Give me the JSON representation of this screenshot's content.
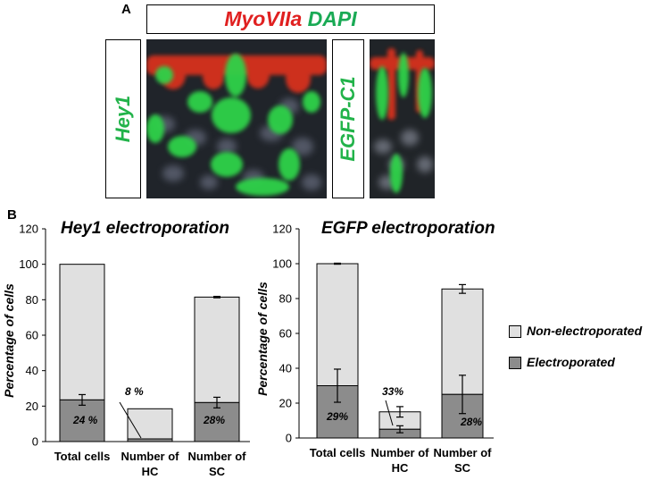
{
  "panel_a": {
    "letter": "A",
    "title_red": "MyoVIIa",
    "title_green": "DAPI",
    "left_label": "Hey1",
    "right_label": "EGFP-C1"
  },
  "panel_b": {
    "letter": "B"
  },
  "legend": {
    "non_electroporated": "Non-electroporated",
    "electroporated": "Electroporated"
  },
  "colors": {
    "non_electroporated": "#e0e0e0",
    "electroporated": "#8c8c8c",
    "red_stain": "#e02020",
    "green_stain": "#22b34a"
  },
  "chart_data": [
    {
      "type": "bar",
      "stacked": true,
      "title": "Hey1 electroporation",
      "ylabel": "Percentage of cells",
      "ylim": [
        0,
        120
      ],
      "yticks": [
        0,
        20,
        40,
        60,
        80,
        100,
        120
      ],
      "categories": [
        "Total cells",
        "Number of HC",
        "Number of SC"
      ],
      "series": [
        {
          "name": "Electroporated",
          "values": [
            23.5,
            1.5,
            22
          ],
          "errors": [
            3,
            0,
            3
          ]
        },
        {
          "name": "Non-electroporated",
          "values": [
            76.5,
            17,
            59.5
          ],
          "errors": [
            0,
            0,
            0.4
          ]
        }
      ],
      "annotations": [
        "24 %",
        "8 %",
        "28%"
      ]
    },
    {
      "type": "bar",
      "stacked": true,
      "title": "EGFP electroporation",
      "ylabel": "Percentage of cells",
      "ylim": [
        0,
        120
      ],
      "yticks": [
        0,
        20,
        40,
        60,
        80,
        100,
        120
      ],
      "categories": [
        "Total cells",
        "Number of HC",
        "Number of SC"
      ],
      "series": [
        {
          "name": "Electroporated",
          "values": [
            30,
            5,
            25
          ],
          "errors": [
            9.5,
            2,
            11
          ]
        },
        {
          "name": "Non-electroporated",
          "values": [
            70,
            10,
            60.5
          ],
          "errors": [
            0.3,
            3,
            2.5
          ]
        }
      ],
      "annotations": [
        "29%",
        "33%",
        "28%"
      ]
    }
  ]
}
